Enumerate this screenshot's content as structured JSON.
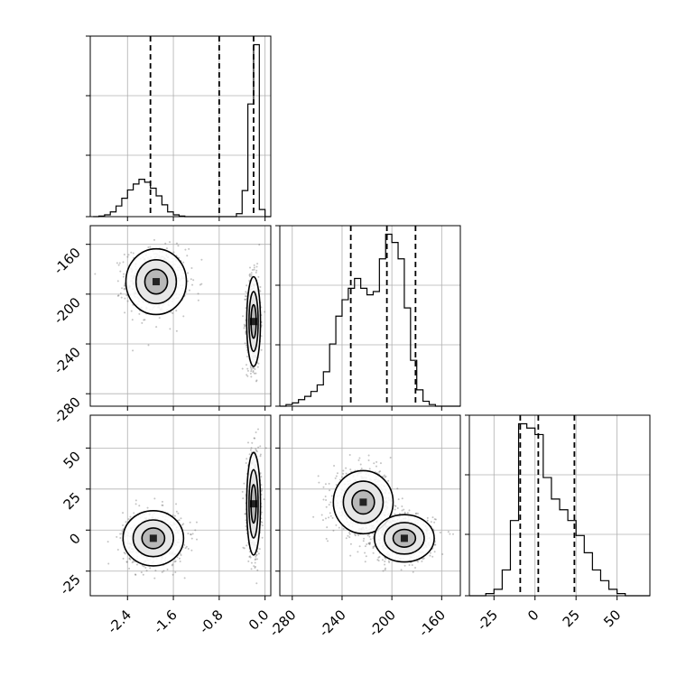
{
  "chart_data": {
    "type": "corner",
    "title": "",
    "parameters": [
      {
        "name": "",
        "range": [
          -3.05,
          0.1
        ],
        "ticks": [
          "-2.4",
          "-1.6",
          "-0.8",
          "0.0"
        ],
        "tick_values": [
          -2.4,
          -1.6,
          -0.8,
          0.0
        ],
        "quantiles": [
          -2.0,
          -0.8,
          -0.2
        ]
      },
      {
        "name": "",
        "range": [
          -290,
          -145
        ],
        "ticks": [
          "-280",
          "-240",
          "-200",
          "-160"
        ],
        "tick_values": [
          -280,
          -240,
          -200,
          -160
        ],
        "quantiles": [
          -233,
          -204,
          -181
        ]
      },
      {
        "name": "",
        "range": [
          -40,
          70
        ],
        "ticks": [
          "-25",
          "0",
          "25",
          "50"
        ],
        "tick_values": [
          -25,
          0,
          25,
          50
        ],
        "quantiles": [
          -9,
          2,
          24
        ]
      }
    ],
    "histograms": [
      {
        "param": 0,
        "bin_edges": [
          -3.0,
          -2.9,
          -2.8,
          -2.7,
          -2.6,
          -2.5,
          -2.4,
          -2.3,
          -2.2,
          -2.1,
          -2.0,
          -1.9,
          -1.8,
          -1.7,
          -1.6,
          -1.5,
          -1.4,
          -1.3,
          -1.2,
          -1.1,
          -1.0,
          -0.9,
          -0.8,
          -0.7,
          -0.6,
          -0.5,
          -0.4,
          -0.3,
          -0.2,
          -0.1,
          0.0,
          0.1
        ],
        "counts": [
          0,
          1,
          3,
          8,
          18,
          31,
          45,
          55,
          63,
          58,
          48,
          35,
          20,
          8,
          3,
          1,
          0,
          0,
          0,
          0,
          0,
          0,
          0,
          0,
          0,
          5,
          44,
          190,
          290,
          12,
          0
        ]
      },
      {
        "param": 1,
        "bin_edges": [
          -290,
          -285,
          -280,
          -275,
          -270,
          -265,
          -260,
          -255,
          -250,
          -245,
          -240,
          -235,
          -230,
          -225,
          -220,
          -215,
          -210,
          -205,
          -200,
          -195,
          -190,
          -185,
          -180,
          -175,
          -170,
          -165,
          -160,
          -155,
          -150,
          -145
        ],
        "counts": [
          0,
          1,
          2,
          4,
          6,
          9,
          13,
          21,
          38,
          55,
          65,
          72,
          78,
          72,
          68,
          70,
          90,
          105,
          100,
          90,
          60,
          28,
          10,
          3,
          1,
          0,
          0,
          0,
          0
        ]
      },
      {
        "param": 2,
        "bin_edges": [
          -40,
          -35,
          -30,
          -25,
          -20,
          -15,
          -10,
          -5,
          0,
          5,
          10,
          15,
          20,
          25,
          30,
          35,
          40,
          45,
          50,
          55,
          60,
          65,
          70
        ],
        "counts": [
          0,
          0,
          1,
          3,
          12,
          35,
          80,
          78,
          75,
          55,
          45,
          40,
          35,
          28,
          20,
          12,
          7,
          3,
          1,
          0,
          0,
          0
        ]
      }
    ],
    "pairs": [
      {
        "x_param": 0,
        "y_param": 1,
        "modes": [
          {
            "center": [
              -1.9,
              -190
            ],
            "sx": 0.22,
            "sy": 11
          },
          {
            "center": [
              -0.2,
              -222
            ],
            "sx": 0.05,
            "sy": 15
          }
        ]
      },
      {
        "x_param": 0,
        "y_param": 2,
        "modes": [
          {
            "center": [
              -1.95,
              -5
            ],
            "sx": 0.22,
            "sy": 7
          },
          {
            "center": [
              -0.2,
              16
            ],
            "sx": 0.05,
            "sy": 13
          }
        ]
      },
      {
        "x_param": 1,
        "y_param": 2,
        "modes": [
          {
            "center": [
              -223,
              17
            ],
            "sx": 10,
            "sy": 8
          },
          {
            "center": [
              -190,
              -5
            ],
            "sx": 10,
            "sy": 6
          }
        ]
      }
    ],
    "grid": true,
    "legend": "none"
  }
}
